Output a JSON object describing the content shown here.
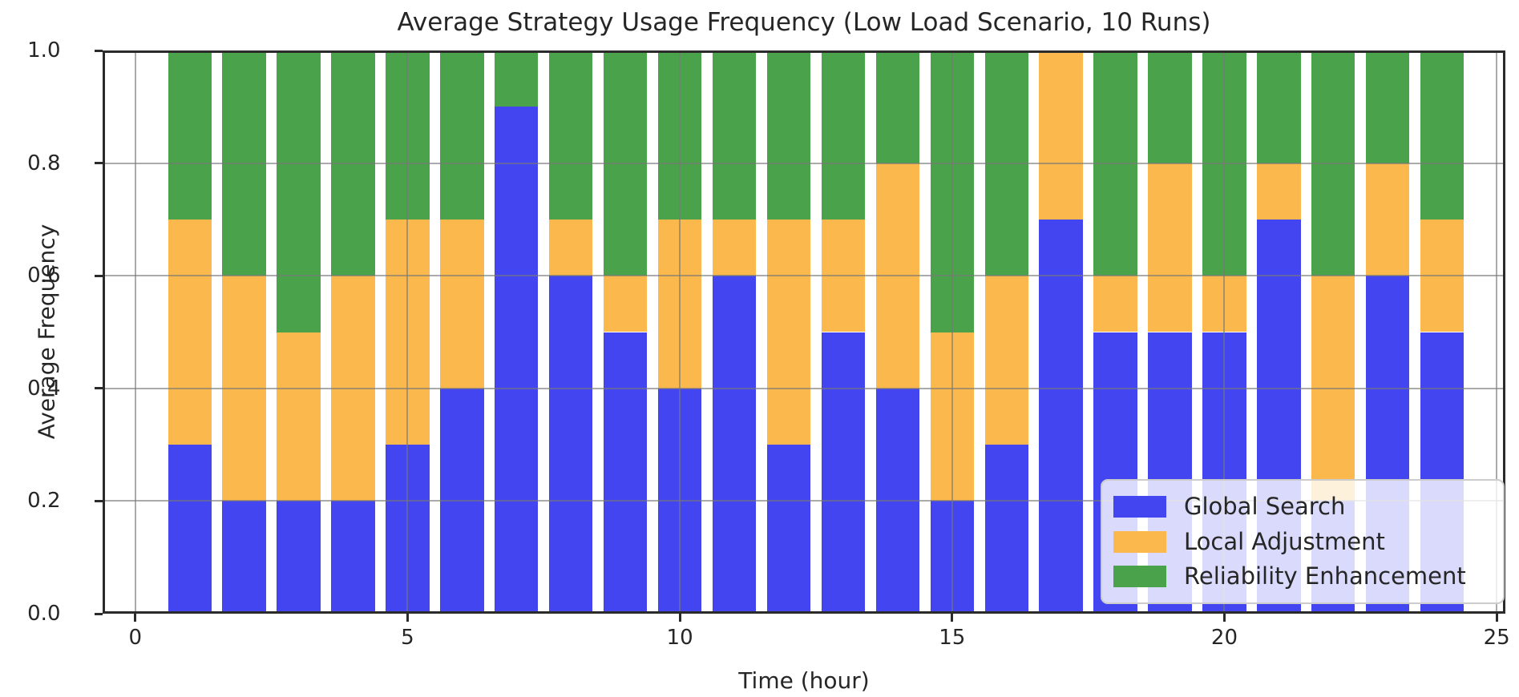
{
  "figure": {
    "title": "Average Strategy Usage Frequency (Low Load Scenario, 10 Runs)",
    "xlabel": "Time (hour)",
    "ylabel": "Average Frequency"
  },
  "chart_data": {
    "type": "bar",
    "stacked": true,
    "title": "Average Strategy Usage Frequency (Low Load Scenario, 10 Runs)",
    "xlabel": "Time (hour)",
    "ylabel": "Average Frequency",
    "x": [
      1,
      2,
      3,
      4,
      5,
      6,
      7,
      8,
      9,
      10,
      11,
      12,
      13,
      14,
      15,
      16,
      17,
      18,
      19,
      20,
      21,
      22,
      23,
      24
    ],
    "series": [
      {
        "name": "Global Search",
        "color": "#4245f0",
        "values": [
          0.3,
          0.2,
          0.2,
          0.2,
          0.3,
          0.4,
          0.9,
          0.6,
          0.5,
          0.4,
          0.6,
          0.3,
          0.5,
          0.4,
          0.2,
          0.3,
          0.7,
          0.5,
          0.5,
          0.5,
          0.7,
          0.2,
          0.6,
          0.5
        ]
      },
      {
        "name": "Local Adjustment",
        "color": "#fbb84c",
        "values": [
          0.4,
          0.4,
          0.3,
          0.4,
          0.4,
          0.3,
          0.0,
          0.1,
          0.1,
          0.3,
          0.1,
          0.4,
          0.2,
          0.4,
          0.3,
          0.3,
          0.3,
          0.1,
          0.3,
          0.1,
          0.1,
          0.4,
          0.2,
          0.2
        ]
      },
      {
        "name": "Reliability Enhancement",
        "color": "#4aa34a",
        "values": [
          0.3,
          0.4,
          0.5,
          0.4,
          0.3,
          0.3,
          0.1,
          0.3,
          0.4,
          0.3,
          0.3,
          0.3,
          0.3,
          0.2,
          0.5,
          0.4,
          0.0,
          0.4,
          0.2,
          0.4,
          0.2,
          0.4,
          0.2,
          0.3
        ]
      }
    ],
    "bar_width": 0.8,
    "xlim": [
      -0.6,
      25.16
    ],
    "ylim": [
      0.0,
      1.0
    ],
    "xticks": {
      "values": [
        0,
        5,
        10,
        15,
        20,
        25
      ],
      "labels": [
        "0",
        "5",
        "10",
        "15",
        "20",
        "25"
      ]
    },
    "yticks": {
      "values": [
        0.0,
        0.2,
        0.4,
        0.6,
        0.8,
        1.0
      ],
      "labels": [
        "0.0",
        "0.2",
        "0.4",
        "0.6",
        "0.8",
        "1.0"
      ]
    },
    "grid": true,
    "grid_above_bars": true,
    "legend": {
      "position": "lower right",
      "entries": [
        "Global Search",
        "Local Adjustment",
        "Reliability Enhancement"
      ]
    },
    "colors": {
      "global_search": "#4245f0",
      "local_adjustment": "#fbb84c",
      "reliability_enhancement": "#4aa34a",
      "grid": "#787878",
      "spine": "#2b2b2b",
      "text": "#262626",
      "legend_background": "#ffffff",
      "legend_border": "#cccccc"
    }
  }
}
